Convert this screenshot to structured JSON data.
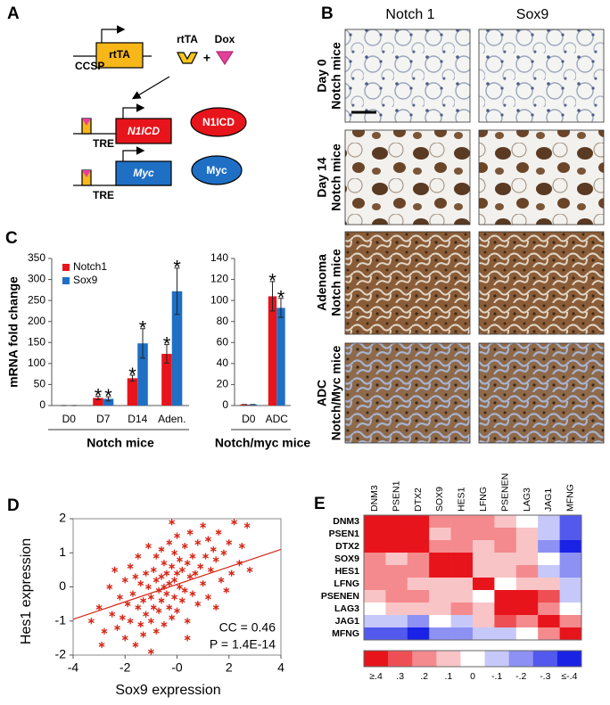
{
  "panel_labels": [
    "A",
    "B",
    "C",
    "D",
    "E"
  ],
  "diagram": {
    "promoter": "CCSP",
    "driver": "rtTA",
    "protein": "rtTA",
    "drug": "Dox",
    "plus": "+",
    "response_element_1": "TRE",
    "transgene_1": "N1ICD",
    "product_1": "N1ICD",
    "response_element_2": "TRE",
    "transgene_2": "Myc",
    "product_2": "Myc"
  },
  "micrographs": {
    "columns": [
      "Notch 1",
      "Sox9"
    ],
    "rows": [
      [
        "Day 0",
        "Notch mice"
      ],
      [
        "Day 14",
        "Notch mice"
      ],
      [
        "Adenoma",
        "Notch mice"
      ],
      [
        "ADC",
        "Notch/Myc mice"
      ]
    ]
  },
  "chart_data": [
    {
      "type": "bar",
      "ylabel": "mRNA fold change",
      "group_label": "Notch mice",
      "categories": [
        "D0",
        "D7",
        "D14",
        "Aden."
      ],
      "series": [
        {
          "name": "Notch1",
          "color": "#e8141b",
          "values": [
            0,
            18,
            65,
            123
          ],
          "errors": [
            0,
            4,
            7,
            22
          ],
          "markers": [
            null,
            "*",
            "*",
            "*"
          ]
        },
        {
          "name": "Sox9",
          "color": "#1f6fc5",
          "values": [
            0,
            16,
            148,
            272
          ],
          "errors": [
            0,
            5,
            35,
            55
          ],
          "markers": [
            null,
            "*",
            "*",
            "*"
          ]
        }
      ],
      "ylim": [
        0,
        350
      ],
      "yticks": [
        0,
        50,
        100,
        150,
        200,
        250,
        300,
        350
      ]
    },
    {
      "type": "bar",
      "group_label": "Notch/myc mice",
      "categories": [
        "D0",
        "ADC"
      ],
      "series": [
        {
          "color": "#e8141b",
          "values": [
            1,
            104
          ],
          "errors": [
            0,
            14
          ],
          "markers": [
            null,
            "*"
          ]
        },
        {
          "color": "#1f6fc5",
          "values": [
            1,
            93
          ],
          "errors": [
            0,
            9
          ],
          "markers": [
            null,
            "*"
          ]
        }
      ],
      "ylim": [
        0,
        140
      ],
      "yticks": [
        0,
        20,
        40,
        60,
        80,
        100,
        120,
        140
      ]
    },
    {
      "type": "scatter",
      "xlabel": "Sox9 expression",
      "ylabel": "Hes1 expression",
      "color": "#d62718",
      "x": [
        -3.3,
        -3.0,
        -2.8,
        -2.6,
        -2.5,
        -2.4,
        -2.3,
        -2.2,
        -2.1,
        -2.0,
        -2.0,
        -1.9,
        -1.8,
        -1.8,
        -1.7,
        -1.6,
        -1.6,
        -1.5,
        -1.5,
        -1.4,
        -1.4,
        -1.3,
        -1.3,
        -1.2,
        -1.2,
        -1.1,
        -1.1,
        -1.0,
        -1.0,
        -0.9,
        -0.9,
        -0.8,
        -0.8,
        -0.8,
        -0.7,
        -0.7,
        -0.6,
        -0.6,
        -0.6,
        -0.5,
        -0.5,
        -0.5,
        -0.4,
        -0.4,
        -0.3,
        -0.3,
        -0.3,
        -0.2,
        -0.2,
        -0.1,
        -0.1,
        -0.1,
        0.0,
        0.0,
        0.0,
        0.1,
        0.1,
        0.2,
        0.2,
        0.3,
        0.3,
        0.4,
        0.4,
        0.5,
        0.5,
        0.6,
        0.6,
        0.7,
        0.8,
        0.8,
        0.9,
        1.0,
        1.0,
        1.1,
        1.2,
        1.2,
        1.3,
        1.4,
        1.5,
        1.5,
        1.6,
        1.7,
        1.8,
        1.9,
        2.0,
        2.1,
        2.2,
        2.4,
        2.5,
        2.7,
        2.8,
        -2.9,
        -1.0,
        0.4,
        -0.2
      ],
      "values": [
        -1.0,
        -0.6,
        -1.3,
        0.0,
        -0.8,
        0.5,
        -1.2,
        -0.3,
        -0.9,
        0.2,
        -1.5,
        -0.5,
        0.6,
        -1.0,
        -0.2,
        -1.7,
        0.3,
        -0.6,
        0.9,
        -1.1,
        0.1,
        -0.4,
        -1.4,
        0.4,
        -0.8,
        0.0,
        1.2,
        -0.3,
        -1.0,
        0.5,
        -0.6,
        0.2,
        -1.3,
        0.9,
        -0.1,
        -0.7,
        0.3,
        1.1,
        -0.4,
        0.0,
        -1.1,
        0.7,
        -0.2,
        0.4,
        1.3,
        -0.6,
        0.1,
        -0.9,
        0.6,
        0.2,
        -0.3,
        1.0,
        0.4,
        -0.7,
        1.5,
        0.0,
        0.8,
        -0.4,
        0.5,
        1.2,
        -0.1,
        0.7,
        -1.0,
        0.3,
        1.6,
        -0.2,
        0.9,
        0.4,
        1.3,
        -0.5,
        0.6,
        1.8,
        0.1,
        0.9,
        -0.3,
        1.4,
        0.5,
        1.1,
        -0.6,
        0.8,
        1.6,
        0.2,
        1.0,
        -0.1,
        1.3,
        0.4,
        1.9,
        0.7,
        1.2,
        1.8,
        0.5,
        -1.7,
        -1.9,
        -1.5,
        1.9
      ],
      "fit_line": {
        "x": [
          -4,
          4
        ],
        "y": [
          -0.95,
          1.1
        ]
      },
      "annotations": [
        "CC = 0.46",
        "P = 1.4E-14"
      ],
      "xlim": [
        -4,
        4
      ],
      "xticks": [
        -4,
        -2,
        {
          "value": 0,
          "label": "-0"
        },
        2,
        4
      ],
      "ylim": [
        -2,
        2
      ],
      "yticks": [
        -2,
        -1,
        0,
        1,
        2
      ]
    },
    {
      "type": "heatmap",
      "x_labels": [
        "DNM3",
        "PSEN1",
        "DTX2",
        "SOX9",
        "HES1",
        "LFNG",
        "PSENEN",
        "LAG3",
        "JAG1",
        "MFNG"
      ],
      "y_labels": [
        "DNM3",
        "PSEN1",
        "DTX2",
        "SOX9",
        "HES1",
        "LFNG",
        "PSENEN",
        "LAG3",
        "JAG1",
        "MFNG"
      ],
      "values": [
        [
          0.4,
          0.4,
          0.4,
          0.2,
          0.2,
          0.2,
          0.1,
          0,
          -0.1,
          -0.3
        ],
        [
          0.4,
          0.4,
          0.4,
          0.1,
          0.2,
          0.2,
          0.2,
          0.1,
          -0.1,
          -0.3
        ],
        [
          0.4,
          0.4,
          0.4,
          0.2,
          0.2,
          0.1,
          0.2,
          0.1,
          -0.2,
          -0.4
        ],
        [
          0.2,
          0.1,
          0.2,
          0.4,
          0.4,
          0.1,
          0.1,
          0.1,
          0,
          -0.2
        ],
        [
          0.2,
          0.2,
          0.2,
          0.4,
          0.4,
          0.1,
          0.1,
          0.2,
          -0.1,
          -0.2
        ],
        [
          0.2,
          0.2,
          0.1,
          0.1,
          0.1,
          0.4,
          0,
          0.1,
          0.1,
          -0.1
        ],
        [
          0.1,
          0.2,
          0.2,
          0.1,
          0.1,
          0,
          0.4,
          0.4,
          0.3,
          -0.1
        ],
        [
          0,
          0.1,
          0.1,
          0.1,
          0.2,
          0.1,
          0.4,
          0.4,
          0.2,
          0
        ],
        [
          -0.1,
          -0.1,
          -0.2,
          0,
          -0.1,
          0.1,
          0.3,
          0.2,
          0.4,
          0.2
        ],
        [
          -0.3,
          -0.3,
          -0.4,
          -0.2,
          -0.2,
          -0.1,
          -0.1,
          0,
          0.2,
          0.4
        ]
      ],
      "color_range": [
        -0.4,
        0.4
      ],
      "colors": {
        "negative": "#1a22e6",
        "zero": "#ffffff",
        "positive": "#e8141b"
      },
      "colorbar": [
        {
          "value": 0.4,
          "label": "≥.4"
        },
        {
          "value": 0.3,
          "label": ".3"
        },
        {
          "value": 0.2,
          "label": ".2"
        },
        {
          "value": 0.1,
          "label": ".1"
        },
        0,
        {
          "value": -0.1,
          "label": "-.1"
        },
        {
          "value": -0.2,
          "label": "-.2"
        },
        {
          "value": -0.3,
          "label": "-.3"
        },
        {
          "value": -0.4,
          "label": "≤-.4"
        }
      ]
    }
  ]
}
